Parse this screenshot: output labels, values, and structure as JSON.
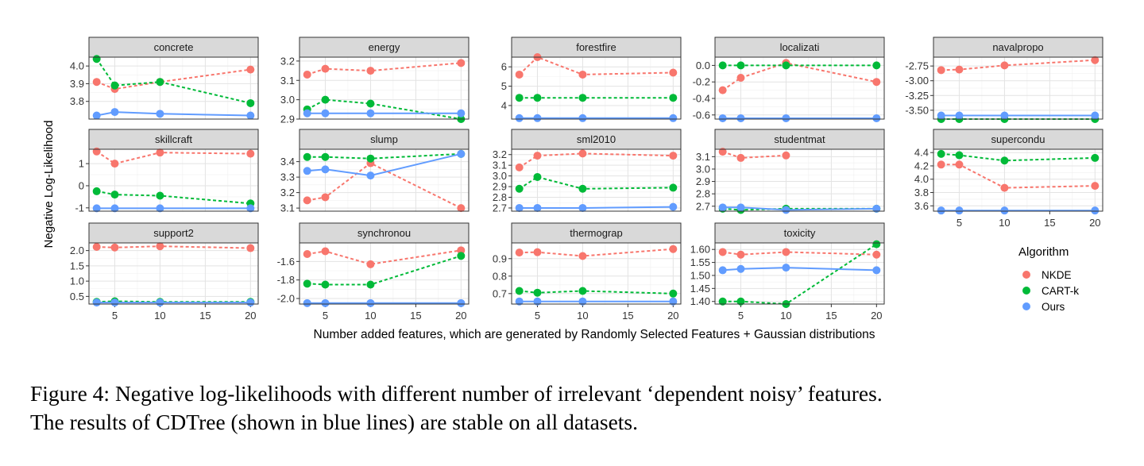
{
  "chart_data": {
    "type": "line",
    "x": [
      3,
      5,
      10,
      20
    ],
    "x_ticks": [
      5,
      10,
      15,
      20
    ],
    "xlabel": "Number added features, which are generated by Randomly Selected Features + Gaussian distributions",
    "ylabel": "Negative Log-Likelihood",
    "legend": {
      "title": "Algorithm",
      "placement": "right",
      "entries": [
        {
          "name": "NKDE",
          "color": "#F8766D"
        },
        {
          "name": "CART-k",
          "color": "#00BA38"
        },
        {
          "name": "Ours",
          "color": "#619CFF"
        }
      ]
    },
    "panels": [
      {
        "name": "concrete",
        "ylim": [
          3.7,
          4.05
        ],
        "yticks": [
          3.8,
          3.9,
          4.0
        ],
        "ytick_labels": [
          "3.8",
          "3.9",
          "4.0"
        ],
        "series": [
          {
            "name": "NKDE",
            "values": [
              3.91,
              3.87,
              3.91,
              3.98
            ]
          },
          {
            "name": "CART-k",
            "values": [
              4.04,
              3.89,
              3.91,
              3.79
            ]
          },
          {
            "name": "Ours",
            "values": [
              3.72,
              3.74,
              3.73,
              3.72
            ]
          }
        ]
      },
      {
        "name": "energy",
        "ylim": [
          2.9,
          3.22
        ],
        "yticks": [
          2.9,
          3.0,
          3.1,
          3.2
        ],
        "ytick_labels": [
          "2.9",
          "3.0",
          "3.1",
          "3.2"
        ],
        "series": [
          {
            "name": "NKDE",
            "values": [
              3.13,
              3.16,
              3.15,
              3.19
            ]
          },
          {
            "name": "CART-k",
            "values": [
              2.95,
              3.0,
              2.98,
              2.9
            ]
          },
          {
            "name": "Ours",
            "values": [
              2.93,
              2.93,
              2.93,
              2.93
            ]
          }
        ]
      },
      {
        "name": "forestfire",
        "ylim": [
          3.3,
          6.5
        ],
        "yticks": [
          4,
          5,
          6
        ],
        "ytick_labels": [
          "4",
          "5",
          "6"
        ],
        "series": [
          {
            "name": "NKDE",
            "values": [
              5.6,
              6.5,
              5.6,
              5.7
            ]
          },
          {
            "name": "CART-k",
            "values": [
              4.4,
              4.4,
              4.4,
              4.4
            ]
          },
          {
            "name": "Ours",
            "values": [
              3.35,
              3.35,
              3.35,
              3.35
            ]
          }
        ]
      },
      {
        "name": "localizati",
        "ylim": [
          -0.65,
          0.1
        ],
        "yticks": [
          -0.6,
          -0.4,
          -0.2,
          0.0
        ],
        "ytick_labels": [
          "-0.6",
          "-0.4",
          "-0.2",
          "0.0"
        ],
        "series": [
          {
            "name": "NKDE",
            "values": [
              -0.3,
              -0.15,
              0.03,
              -0.2
            ]
          },
          {
            "name": "CART-k",
            "values": [
              0.0,
              0.0,
              0.0,
              0.0
            ]
          },
          {
            "name": "Ours",
            "values": [
              -0.64,
              -0.64,
              -0.64,
              -0.64
            ]
          }
        ]
      },
      {
        "name": "navalpropo",
        "ylim": [
          -3.65,
          -2.6
        ],
        "yticks": [
          -3.5,
          -3.25,
          -3.0,
          -2.75
        ],
        "ytick_labels": [
          "-3.50",
          "-3.25",
          "-3.00",
          "-2.75"
        ],
        "series": [
          {
            "name": "NKDE",
            "values": [
              -2.82,
              -2.81,
              -2.74,
              -2.65
            ]
          },
          {
            "name": "CART-k",
            "values": [
              -3.65,
              -3.65,
              -3.65,
              -3.65
            ]
          },
          {
            "name": "Ours",
            "values": [
              -3.59,
              -3.59,
              -3.59,
              -3.59
            ]
          }
        ]
      },
      {
        "name": "skillcraft",
        "ylim": [
          -1.15,
          1.65
        ],
        "yticks": [
          -1,
          0,
          1
        ],
        "ytick_labels": [
          "-1",
          "0",
          "1"
        ],
        "series": [
          {
            "name": "NKDE",
            "values": [
              1.55,
              1.0,
              1.5,
              1.45
            ]
          },
          {
            "name": "CART-k",
            "values": [
              -0.25,
              -0.4,
              -0.45,
              -0.8
            ]
          },
          {
            "name": "Ours",
            "values": [
              -1.02,
              -1.02,
              -1.02,
              -1.02
            ]
          }
        ]
      },
      {
        "name": "slump",
        "ylim": [
          3.08,
          3.48
        ],
        "yticks": [
          3.1,
          3.2,
          3.3,
          3.4
        ],
        "ytick_labels": [
          "3.1",
          "3.2",
          "3.3",
          "3.4"
        ],
        "series": [
          {
            "name": "NKDE",
            "values": [
              3.15,
              3.17,
              3.39,
              3.1
            ]
          },
          {
            "name": "CART-k",
            "values": [
              3.43,
              3.43,
              3.42,
              3.45
            ]
          },
          {
            "name": "Ours",
            "values": [
              3.34,
              3.35,
              3.31,
              3.45
            ]
          }
        ]
      },
      {
        "name": "sml2010",
        "ylim": [
          2.67,
          3.25
        ],
        "yticks": [
          2.7,
          2.8,
          2.9,
          3.0,
          3.1,
          3.2
        ],
        "ytick_labels": [
          "2.7",
          "2.8",
          "2.9",
          "3.0",
          "3.1",
          "3.2"
        ],
        "series": [
          {
            "name": "NKDE",
            "values": [
              3.08,
              3.19,
              3.21,
              3.19
            ]
          },
          {
            "name": "CART-k",
            "values": [
              2.88,
              2.99,
              2.88,
              2.89
            ]
          },
          {
            "name": "Ours",
            "values": [
              2.7,
              2.7,
              2.7,
              2.71
            ]
          }
        ]
      },
      {
        "name": "studentmat",
        "ylim": [
          2.66,
          3.16
        ],
        "yticks": [
          2.7,
          2.8,
          2.9,
          3.0,
          3.1
        ],
        "ytick_labels": [
          "2.7",
          "2.8",
          "2.9",
          "3.0",
          "3.1"
        ],
        "series": [
          {
            "name": "NKDE",
            "values": [
              3.14,
              3.09,
              3.11,
              null
            ]
          },
          {
            "name": "CART-k",
            "values": [
              2.68,
              2.67,
              2.68,
              2.68
            ]
          },
          {
            "name": "Ours",
            "values": [
              2.69,
              2.69,
              2.67,
              2.68
            ]
          }
        ]
      },
      {
        "name": "supercondu",
        "ylim": [
          3.52,
          4.45
        ],
        "yticks": [
          3.6,
          3.8,
          4.0,
          4.2,
          4.4
        ],
        "ytick_labels": [
          "3.6",
          "3.8",
          "4.0",
          "4.2",
          "4.4"
        ],
        "series": [
          {
            "name": "NKDE",
            "values": [
              4.22,
              4.22,
              3.87,
              3.9
            ]
          },
          {
            "name": "CART-k",
            "values": [
              4.38,
              4.36,
              4.28,
              4.32
            ]
          },
          {
            "name": "Ours",
            "values": [
              3.53,
              3.53,
              3.53,
              3.53
            ]
          }
        ]
      },
      {
        "name": "support2",
        "ylim": [
          0.25,
          2.25
        ],
        "yticks": [
          0.5,
          1.0,
          1.5,
          2.0
        ],
        "ytick_labels": [
          "0.5",
          "1.0",
          "1.5",
          "2.0"
        ],
        "series": [
          {
            "name": "NKDE",
            "values": [
              2.12,
              2.1,
              2.14,
              2.08
            ]
          },
          {
            "name": "CART-k",
            "values": [
              0.32,
              0.34,
              0.32,
              0.32
            ]
          },
          {
            "name": "Ours",
            "values": [
              0.3,
              0.3,
              0.3,
              0.3
            ]
          }
        ]
      },
      {
        "name": "synchronou",
        "ylim": [
          -2.06,
          -1.4
        ],
        "yticks": [
          -2.0,
          -1.8,
          -1.6
        ],
        "ytick_labels": [
          "-2.0",
          "-1.8",
          "-1.6"
        ],
        "series": [
          {
            "name": "NKDE",
            "values": [
              -1.52,
              -1.49,
              -1.63,
              -1.48
            ]
          },
          {
            "name": "CART-k",
            "values": [
              -1.84,
              -1.85,
              -1.85,
              -1.54
            ]
          },
          {
            "name": "Ours",
            "values": [
              -2.05,
              -2.05,
              -2.05,
              -2.05
            ]
          }
        ]
      },
      {
        "name": "thermograp",
        "ylim": [
          0.64,
          0.99
        ],
        "yticks": [
          0.7,
          0.8,
          0.9
        ],
        "ytick_labels": [
          "0.7",
          "0.8",
          "0.9"
        ],
        "series": [
          {
            "name": "NKDE",
            "values": [
              0.935,
              0.937,
              0.915,
              0.955
            ]
          },
          {
            "name": "CART-k",
            "values": [
              0.715,
              0.705,
              0.715,
              0.7
            ]
          },
          {
            "name": "Ours",
            "values": [
              0.655,
              0.655,
              0.655,
              0.655
            ]
          }
        ]
      },
      {
        "name": "toxicity",
        "ylim": [
          1.39,
          1.625
        ],
        "yticks": [
          1.4,
          1.45,
          1.5,
          1.55,
          1.6
        ],
        "ytick_labels": [
          "1.40",
          "1.45",
          "1.50",
          "1.55",
          "1.60"
        ],
        "series": [
          {
            "name": "NKDE",
            "values": [
              1.59,
              1.58,
              1.59,
              1.58
            ]
          },
          {
            "name": "CART-k",
            "values": [
              1.4,
              1.4,
              1.39,
              1.62
            ]
          },
          {
            "name": "Ours",
            "values": [
              1.52,
              1.525,
              1.53,
              1.52
            ]
          }
        ]
      }
    ]
  },
  "caption": {
    "line1": "Figure 4: Negative log-likelihoods with different number of irrelevant ‘dependent noisy’ features.",
    "line2": "The results of CDTree (shown in blue lines) are stable on all datasets."
  }
}
